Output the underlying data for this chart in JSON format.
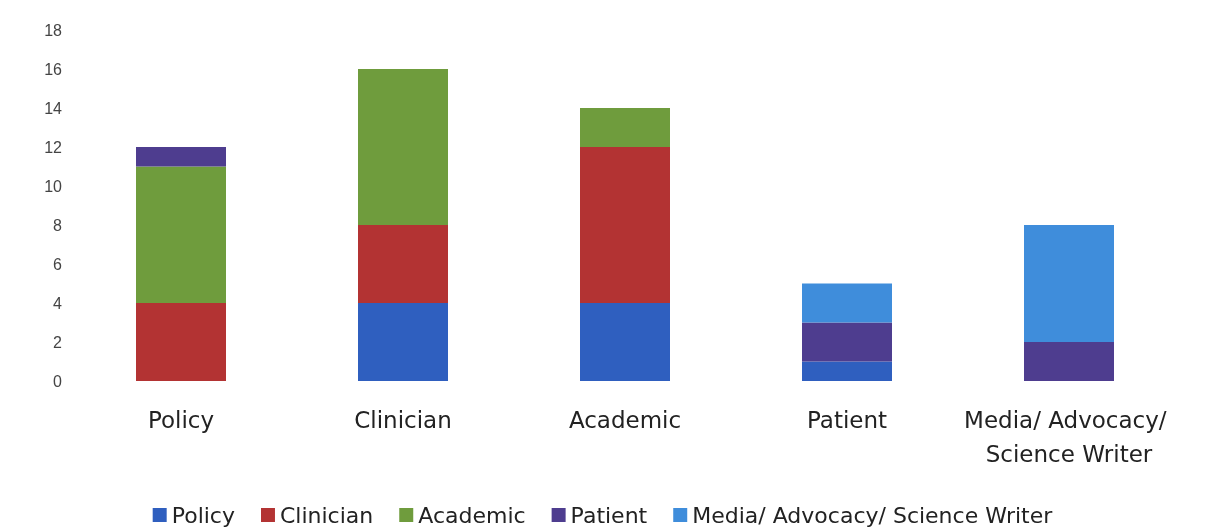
{
  "chart_data": {
    "type": "bar",
    "stacked": true,
    "categories": [
      "Policy",
      "Clinician",
      "Academic",
      "Patient",
      "Media/ Advocacy/ Science Writer"
    ],
    "series": [
      {
        "name": "Policy",
        "color": "#2f5fbf",
        "values": [
          0,
          4,
          4,
          1,
          0
        ]
      },
      {
        "name": "Clinician",
        "color": "#b33333",
        "values": [
          4,
          4,
          8,
          0,
          0
        ]
      },
      {
        "name": "Academic",
        "color": "#6f9c3d",
        "values": [
          7,
          8,
          2,
          0,
          0
        ]
      },
      {
        "name": "Patient",
        "color": "#4e3d8f",
        "values": [
          1,
          0,
          0,
          2,
          2
        ]
      },
      {
        "name": "Media/ Advocacy/ Science Writer",
        "color": "#3f8ddb",
        "values": [
          0,
          0,
          0,
          2,
          6
        ]
      }
    ],
    "ylim": [
      0,
      18
    ],
    "yticks": [
      0,
      2,
      4,
      6,
      8,
      10,
      12,
      14,
      16,
      18
    ],
    "grid": false,
    "legend": "bottom"
  }
}
